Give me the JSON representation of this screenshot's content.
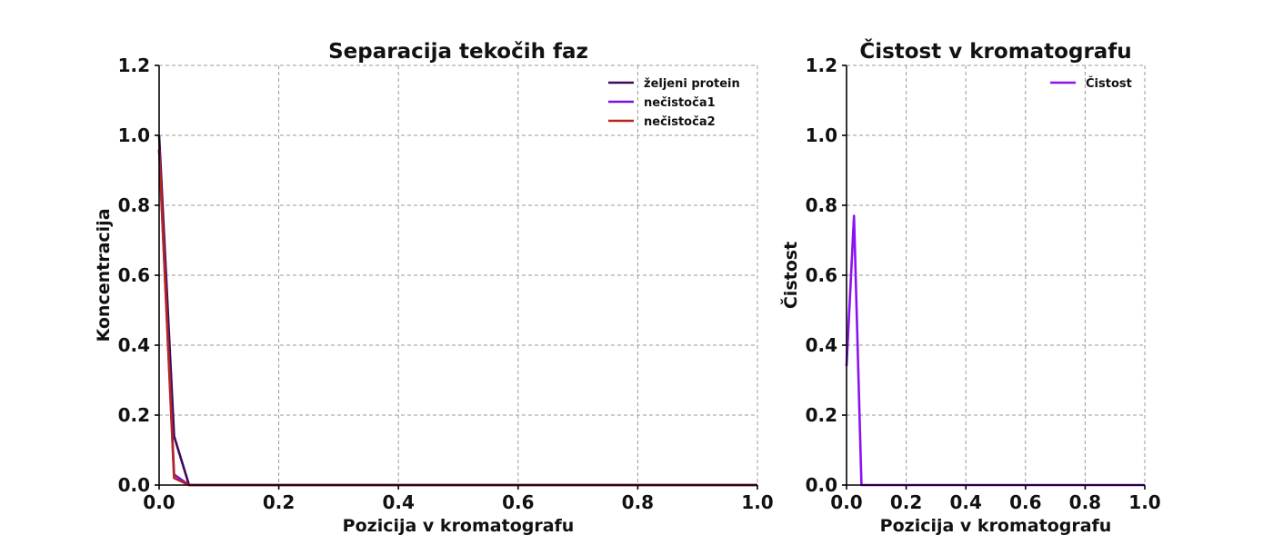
{
  "chart_data": [
    {
      "type": "line",
      "title": "Separacija tekočih faz",
      "xlabel": "Pozicija v kromatografu",
      "ylabel": "Koncentracija",
      "xlim": [
        0,
        1
      ],
      "ylim": [
        0,
        1.2
      ],
      "xticks": [
        "0.0",
        "0.2",
        "0.4",
        "0.6",
        "0.8",
        "1.0"
      ],
      "yticks": [
        "0.0",
        "0.2",
        "0.4",
        "0.6",
        "0.8",
        "1.0",
        "1.2"
      ],
      "grid": true,
      "legend_position": "top-right",
      "series": [
        {
          "name": "željeni protein",
          "color": "#3d0a5b",
          "x": [
            0,
            0.025,
            0.05,
            0.075,
            0.1,
            0.2,
            0.3,
            0.4,
            0.5,
            0.6,
            0.7,
            0.8,
            0.9,
            1.0
          ],
          "y": [
            1.0,
            0.14,
            0.0,
            0.0,
            0.0,
            0.0,
            0.0,
            0.0,
            0.0,
            0.0,
            0.0,
            0.0,
            0.0,
            0.0
          ]
        },
        {
          "name": "nečistoča1",
          "color": "#7b12d9",
          "x": [
            0,
            0.025,
            0.05,
            0.075,
            0.1,
            0.2,
            0.3,
            0.4,
            0.5,
            0.6,
            0.7,
            0.8,
            0.9,
            1.0
          ],
          "y": [
            0.96,
            0.03,
            0.0,
            0.0,
            0.0,
            0.0,
            0.0,
            0.0,
            0.0,
            0.0,
            0.0,
            0.0,
            0.0,
            0.0
          ]
        },
        {
          "name": "nečistoča2",
          "color": "#b5261e",
          "x": [
            0,
            0.025,
            0.05,
            0.075,
            0.1,
            0.2,
            0.3,
            0.4,
            0.5,
            0.6,
            0.7,
            0.8,
            0.9,
            1.0
          ],
          "y": [
            0.96,
            0.02,
            0.0,
            0.0,
            0.0,
            0.0,
            0.0,
            0.0,
            0.0,
            0.0,
            0.0,
            0.0,
            0.0,
            0.0
          ]
        }
      ]
    },
    {
      "type": "line",
      "title": "Čistost v kromatografu",
      "xlabel": "Pozicija v kromatografu",
      "ylabel": "Čistost",
      "xlim": [
        0,
        1
      ],
      "ylim": [
        0,
        1.2
      ],
      "xticks": [
        "0.0",
        "0.2",
        "0.4",
        "0.6",
        "0.8",
        "1.0"
      ],
      "yticks": [
        "0.0",
        "0.2",
        "0.4",
        "0.6",
        "0.8",
        "1.0",
        "1.2"
      ],
      "grid": true,
      "legend_position": "top-right",
      "series": [
        {
          "name": "Čistost",
          "color": "#8a12f2",
          "x": [
            0,
            0.025,
            0.05,
            0.075,
            0.1,
            0.2,
            0.3,
            0.4,
            0.5,
            0.6,
            0.7,
            0.8,
            0.9,
            1.0
          ],
          "y": [
            0.34,
            0.77,
            0.0,
            0.0,
            0.0,
            0.0,
            0.0,
            0.0,
            0.0,
            0.0,
            0.0,
            0.0,
            0.0,
            0.0
          ]
        }
      ]
    }
  ]
}
